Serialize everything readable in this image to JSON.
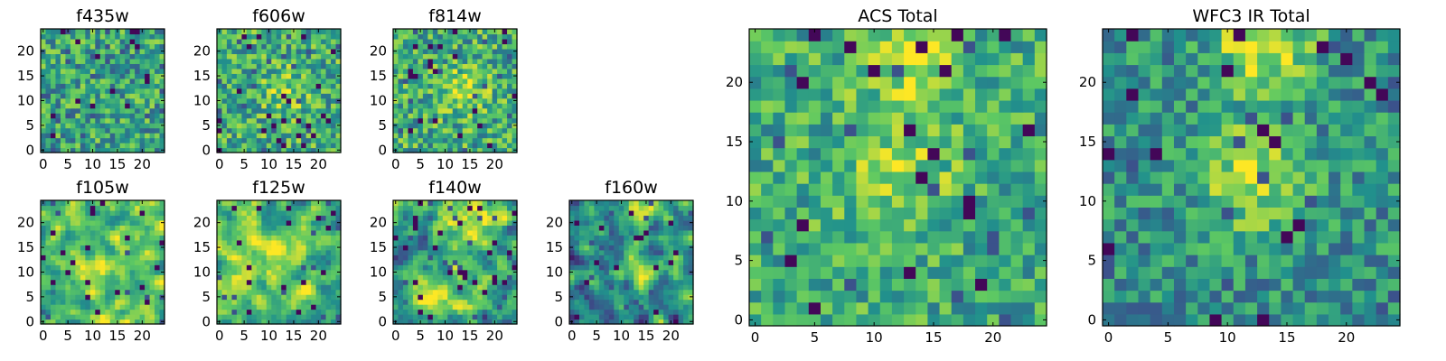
{
  "figure": {
    "colormap": "viridis",
    "colormap_stops": [
      "#440154",
      "#3b528b",
      "#21918c",
      "#5ec962",
      "#fde725"
    ],
    "grid": false,
    "panels": [
      {
        "id": "f435w",
        "title": "f435w",
        "xticks": [
          "0",
          "5",
          "10",
          "15",
          "20"
        ],
        "yticks": [
          "0",
          "5",
          "10",
          "15",
          "20"
        ]
      },
      {
        "id": "f606w",
        "title": "f606w",
        "xticks": [
          "0",
          "5",
          "10",
          "15",
          "20"
        ],
        "yticks": [
          "0",
          "5",
          "10",
          "15",
          "20"
        ]
      },
      {
        "id": "f814w",
        "title": "f814w",
        "xticks": [
          "0",
          "5",
          "10",
          "15",
          "20"
        ],
        "yticks": [
          "0",
          "5",
          "10",
          "15",
          "20"
        ]
      },
      {
        "id": "f105w",
        "title": "f105w",
        "xticks": [
          "0",
          "5",
          "10",
          "15",
          "20"
        ],
        "yticks": [
          "0",
          "5",
          "10",
          "15",
          "20"
        ]
      },
      {
        "id": "f125w",
        "title": "f125w",
        "xticks": [
          "0",
          "5",
          "10",
          "15",
          "20"
        ],
        "yticks": [
          "0",
          "5",
          "10",
          "15",
          "20"
        ]
      },
      {
        "id": "f140w",
        "title": "f140w",
        "xticks": [
          "0",
          "5",
          "10",
          "15",
          "20"
        ],
        "yticks": [
          "0",
          "5",
          "10",
          "15",
          "20"
        ]
      },
      {
        "id": "f160w",
        "title": "f160w",
        "xticks": [
          "0",
          "5",
          "10",
          "15",
          "20"
        ],
        "yticks": [
          "0",
          "5",
          "10",
          "15",
          "20"
        ]
      },
      {
        "id": "acs-total",
        "title": "ACS Total",
        "xticks": [
          "0",
          "5",
          "10",
          "15",
          "20"
        ],
        "yticks": [
          "0",
          "5",
          "10",
          "15",
          "20"
        ]
      },
      {
        "id": "wfc3-ir-total",
        "title": "WFC3 IR Total",
        "xticks": [
          "0",
          "5",
          "10",
          "15",
          "20"
        ],
        "yticks": [
          "0",
          "5",
          "10",
          "15",
          "20"
        ]
      }
    ]
  },
  "chart_data": [
    {
      "type": "heatmap",
      "title": "f435w",
      "xlim": [
        0,
        24
      ],
      "ylim": [
        0,
        24
      ],
      "grid_size": 25,
      "value_range": [
        0,
        1
      ]
    },
    {
      "type": "heatmap",
      "title": "f606w",
      "xlim": [
        0,
        24
      ],
      "ylim": [
        0,
        24
      ],
      "grid_size": 25,
      "value_range": [
        0,
        1
      ]
    },
    {
      "type": "heatmap",
      "title": "f814w",
      "xlim": [
        0,
        24
      ],
      "ylim": [
        0,
        24
      ],
      "grid_size": 25,
      "value_range": [
        0,
        1
      ]
    },
    {
      "type": "heatmap",
      "title": "f105w",
      "xlim": [
        0,
        24
      ],
      "ylim": [
        0,
        24
      ],
      "grid_size": 25,
      "value_range": [
        0,
        1
      ]
    },
    {
      "type": "heatmap",
      "title": "f125w",
      "xlim": [
        0,
        24
      ],
      "ylim": [
        0,
        24
      ],
      "grid_size": 25,
      "value_range": [
        0,
        1
      ]
    },
    {
      "type": "heatmap",
      "title": "f140w",
      "xlim": [
        0,
        24
      ],
      "ylim": [
        0,
        24
      ],
      "grid_size": 25,
      "value_range": [
        0,
        1
      ]
    },
    {
      "type": "heatmap",
      "title": "f160w",
      "xlim": [
        0,
        24
      ],
      "ylim": [
        0,
        24
      ],
      "grid_size": 25,
      "value_range": [
        0,
        1
      ]
    },
    {
      "type": "heatmap",
      "title": "ACS Total",
      "xlim": [
        0,
        24
      ],
      "ylim": [
        0,
        24
      ],
      "grid_size": 25,
      "value_range": [
        0,
        1
      ]
    },
    {
      "type": "heatmap",
      "title": "WFC3 IR Total",
      "xlim": [
        0,
        24
      ],
      "ylim": [
        0,
        24
      ],
      "grid_size": 25,
      "value_range": [
        0,
        1
      ]
    }
  ]
}
